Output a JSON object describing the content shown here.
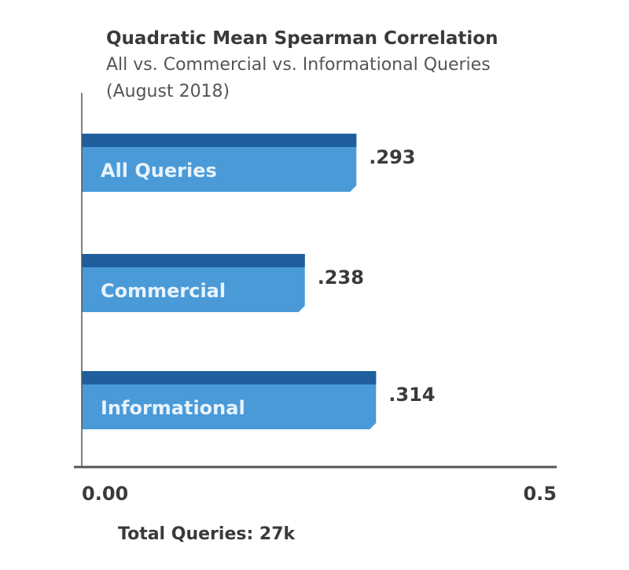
{
  "chart_data": {
    "type": "bar",
    "orientation": "horizontal",
    "title": "Quadratic Mean Spearman Correlation",
    "subtitle": [
      "All vs. Commercial vs. Informational Queries",
      "(August 2018)"
    ],
    "categories": [
      "All Queries",
      "Commercial",
      "Informational"
    ],
    "values": [
      0.293,
      0.238,
      0.314
    ],
    "value_labels": [
      ".293",
      ".238",
      ".314"
    ],
    "xlim": [
      0.0,
      0.5
    ],
    "x_tick_labels": [
      "0.00",
      "0.5"
    ],
    "footer": "Total Queries: 27k",
    "grid": false,
    "colors": {
      "bar_face": "#4a9ad8",
      "bar_top": "#1f5f9e",
      "axis": "#555555",
      "text": "#3a3a3a",
      "label_text": "#e8f3fc"
    }
  }
}
